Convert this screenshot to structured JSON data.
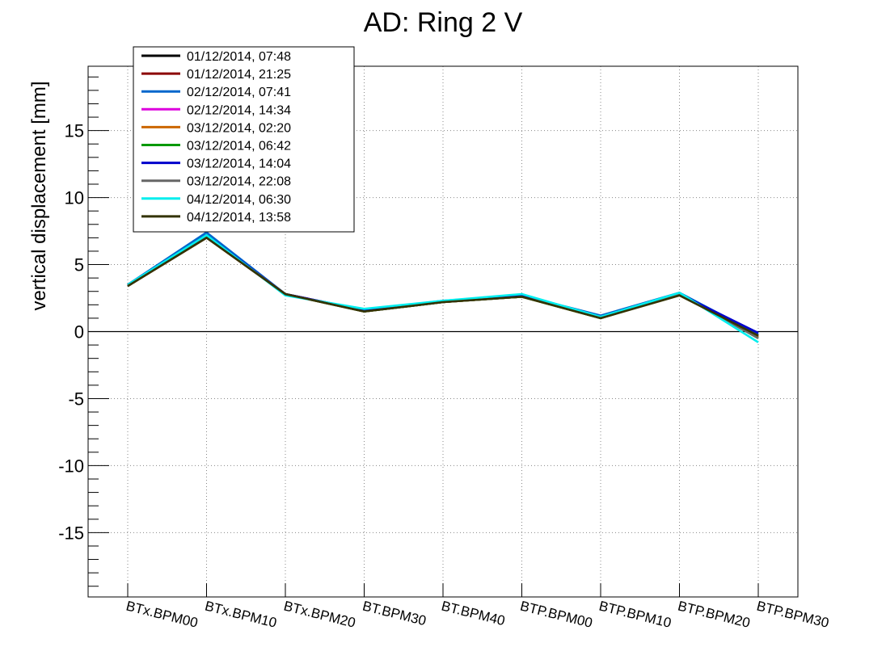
{
  "chart_data": {
    "type": "line",
    "title": "AD: Ring 2 V",
    "xlabel": "",
    "ylabel": "vertical displacement [mm]",
    "ylim": [
      -19.8,
      19.8
    ],
    "yticks": [
      -15,
      -10,
      -5,
      0,
      5,
      10,
      15
    ],
    "grid": true,
    "legend_position": "top-left",
    "categories": [
      "BTx.BPM00",
      "BTx.BPM10",
      "BTx.BPM20",
      "BT.BPM30",
      "BT.BPM40",
      "BTP.BPM00",
      "BTP.BPM10",
      "BTP.BPM20",
      "BTP.BPM30"
    ],
    "series": [
      {
        "name": "01/12/2014, 07:48",
        "color": "#000000",
        "values": [
          3.5,
          7.2,
          2.8,
          1.6,
          2.2,
          2.7,
          1.1,
          2.8,
          -0.3
        ]
      },
      {
        "name": "01/12/2014, 21:25",
        "color": "#8b0000",
        "values": [
          3.4,
          7.0,
          2.8,
          1.5,
          2.2,
          2.6,
          1.0,
          2.8,
          -0.4
        ]
      },
      {
        "name": "02/12/2014, 07:41",
        "color": "#0066cc",
        "values": [
          3.5,
          7.4,
          2.8,
          1.6,
          2.3,
          2.7,
          1.2,
          2.9,
          -0.2
        ]
      },
      {
        "name": "02/12/2014, 14:34",
        "color": "#dd00dd",
        "values": [
          3.4,
          7.1,
          2.8,
          1.6,
          2.2,
          2.7,
          1.1,
          2.8,
          -0.4
        ]
      },
      {
        "name": "03/12/2014, 02:20",
        "color": "#cc6600",
        "values": [
          3.5,
          7.1,
          2.8,
          1.5,
          2.2,
          2.6,
          1.0,
          2.8,
          -0.4
        ]
      },
      {
        "name": "03/12/2014, 06:42",
        "color": "#009900",
        "values": [
          3.4,
          7.1,
          2.8,
          1.5,
          2.2,
          2.6,
          1.0,
          2.8,
          -0.5
        ]
      },
      {
        "name": "03/12/2014, 14:04",
        "color": "#0000cc",
        "values": [
          3.5,
          7.2,
          2.8,
          1.6,
          2.2,
          2.7,
          1.1,
          2.8,
          -0.1
        ]
      },
      {
        "name": "03/12/2014, 22:08",
        "color": "#666666",
        "values": [
          3.4,
          7.1,
          2.8,
          1.5,
          2.2,
          2.6,
          1.1,
          2.8,
          -0.5
        ]
      },
      {
        "name": "04/12/2014, 06:30",
        "color": "#00eeee",
        "values": [
          3.5,
          7.2,
          2.7,
          1.7,
          2.3,
          2.8,
          1.1,
          2.9,
          -0.8
        ]
      },
      {
        "name": "04/12/2014, 13:58",
        "color": "#333300",
        "values": [
          3.4,
          7.0,
          2.8,
          1.5,
          2.2,
          2.6,
          1.0,
          2.7,
          -0.3
        ]
      }
    ]
  }
}
